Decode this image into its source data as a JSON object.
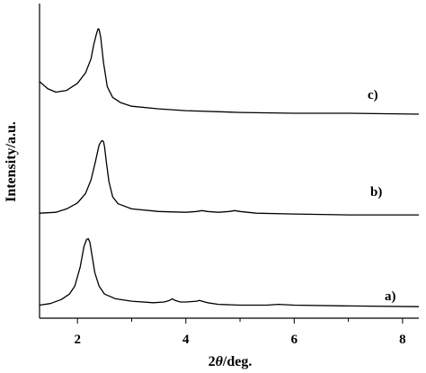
{
  "chart_data": {
    "type": "line",
    "xlabel_prefix": "2",
    "xlabel_symbol": "θ",
    "xlabel_suffix": "/deg.",
    "ylabel": "Intensity/a.u.",
    "xlim": [
      1.3,
      8.3
    ],
    "x_major_ticks": [
      2,
      4,
      6,
      8
    ],
    "x_minor_ticks": [
      3,
      5,
      7
    ],
    "grid": false,
    "series": [
      {
        "name": "a)",
        "x": [
          1.3,
          1.5,
          1.7,
          1.85,
          1.95,
          2.05,
          2.12,
          2.17,
          2.2,
          2.23,
          2.27,
          2.32,
          2.4,
          2.5,
          2.7,
          3.0,
          3.4,
          3.6,
          3.7,
          3.75,
          3.8,
          3.9,
          4.0,
          4.2,
          4.25,
          4.3,
          4.4,
          4.6,
          5.0,
          5.5,
          5.7,
          6.0,
          7.0,
          8.3
        ],
        "y": [
          4,
          6,
          11,
          18,
          28,
          52,
          78,
          87,
          88,
          83,
          66,
          45,
          28,
          18,
          12,
          9,
          7,
          8,
          10,
          12,
          10,
          8,
          8,
          9,
          10,
          9,
          7,
          5,
          4,
          4,
          5,
          4,
          3,
          2
        ]
      },
      {
        "name": "b)",
        "x": [
          1.3,
          1.6,
          1.8,
          2.0,
          2.15,
          2.25,
          2.33,
          2.4,
          2.45,
          2.48,
          2.5,
          2.53,
          2.58,
          2.65,
          2.75,
          3.0,
          3.5,
          4.0,
          4.2,
          4.3,
          4.4,
          4.6,
          4.8,
          4.9,
          5.0,
          5.3,
          6.0,
          7.0,
          8.3
        ],
        "y": [
          3,
          4,
          8,
          15,
          26,
          42,
          63,
          83,
          88,
          87,
          81,
          64,
          40,
          22,
          14,
          8,
          5,
          4,
          5,
          6,
          5,
          4,
          5,
          6,
          5,
          3,
          2,
          1,
          1
        ]
      },
      {
        "name": "c)",
        "x": [
          1.3,
          1.45,
          1.6,
          1.8,
          2.0,
          2.15,
          2.25,
          2.3,
          2.35,
          2.38,
          2.4,
          2.43,
          2.48,
          2.55,
          2.65,
          2.8,
          3.0,
          3.5,
          4.0,
          5.0,
          6.0,
          7.0,
          8.3
        ],
        "y": [
          38,
          30,
          26,
          28,
          36,
          48,
          64,
          80,
          92,
          98,
          97,
          88,
          60,
          32,
          20,
          14,
          10,
          7,
          5,
          3,
          2,
          2,
          1
        ]
      }
    ]
  }
}
